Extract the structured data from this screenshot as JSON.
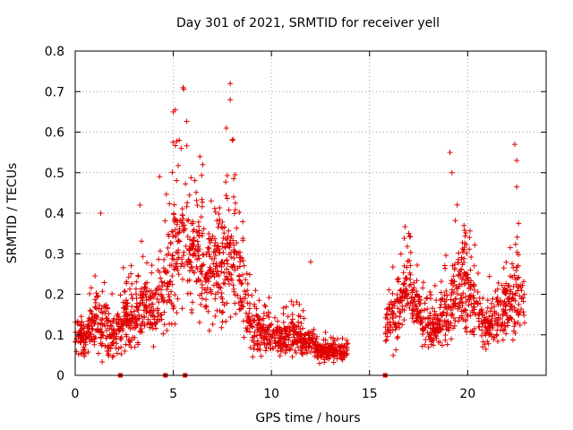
{
  "chart_data": {
    "type": "scatter",
    "title": "Day 301 of 2021, SRMTID for receiver yell",
    "xlabel": "GPS time / hours",
    "ylabel": "SRMTID / TECUs",
    "xlim": [
      0,
      24
    ],
    "ylim": [
      0,
      0.8
    ],
    "xticks": [
      0,
      5,
      10,
      15,
      20
    ],
    "xtick_labels": [
      "0",
      "5",
      "10",
      "15",
      "20"
    ],
    "yticks": [
      0,
      0.1,
      0.2,
      0.3,
      0.4,
      0.5,
      0.6,
      0.7,
      0.8
    ],
    "ytick_labels": [
      "0",
      "0.1",
      "0.2",
      "0.3",
      "0.4",
      "0.5",
      "0.6",
      "0.7",
      "0.8"
    ],
    "grid": true,
    "marker": "plus",
    "color": "#e00000",
    "legend": "none",
    "zero_markers": {
      "marker": "square",
      "x": [
        2.3,
        4.6,
        5.6,
        15.8
      ]
    },
    "data_gap": [
      13.9,
      15.8
    ],
    "envelope": {
      "x": [
        0.0,
        0.5,
        1.0,
        1.5,
        2.0,
        2.5,
        3.0,
        3.5,
        4.0,
        4.5,
        5.0,
        5.5,
        6.0,
        6.5,
        7.0,
        7.5,
        8.0,
        8.5,
        9.0,
        9.5,
        10.0,
        10.5,
        11.0,
        11.5,
        12.0,
        12.5,
        13.0,
        13.5,
        13.9,
        15.8,
        16.0,
        16.5,
        17.0,
        17.5,
        18.0,
        18.5,
        19.0,
        19.5,
        20.0,
        20.5,
        21.0,
        21.5,
        22.0,
        22.5,
        22.9
      ],
      "center": [
        0.11,
        0.09,
        0.14,
        0.11,
        0.09,
        0.14,
        0.15,
        0.16,
        0.17,
        0.2,
        0.3,
        0.36,
        0.31,
        0.26,
        0.25,
        0.28,
        0.3,
        0.22,
        0.12,
        0.1,
        0.1,
        0.09,
        0.1,
        0.09,
        0.08,
        0.06,
        0.06,
        0.06,
        0.06,
        0.11,
        0.14,
        0.18,
        0.22,
        0.14,
        0.12,
        0.12,
        0.16,
        0.22,
        0.21,
        0.16,
        0.12,
        0.14,
        0.18,
        0.2,
        0.18
      ],
      "spread": [
        0.04,
        0.04,
        0.07,
        0.09,
        0.04,
        0.06,
        0.07,
        0.08,
        0.08,
        0.1,
        0.14,
        0.16,
        0.13,
        0.12,
        0.12,
        0.14,
        0.13,
        0.09,
        0.05,
        0.04,
        0.04,
        0.03,
        0.04,
        0.04,
        0.03,
        0.02,
        0.02,
        0.02,
        0.02,
        0.05,
        0.06,
        0.08,
        0.08,
        0.05,
        0.04,
        0.05,
        0.08,
        0.09,
        0.09,
        0.07,
        0.05,
        0.06,
        0.08,
        0.09,
        0.06
      ]
    },
    "peaks": [
      {
        "x": 1.3,
        "y": 0.4
      },
      {
        "x": 3.3,
        "y": 0.42
      },
      {
        "x": 4.3,
        "y": 0.49
      },
      {
        "x": 5.0,
        "y": 0.65
      },
      {
        "x": 5.1,
        "y": 0.655
      },
      {
        "x": 5.5,
        "y": 0.71
      },
      {
        "x": 5.3,
        "y": 0.58
      },
      {
        "x": 5.4,
        "y": 0.56
      },
      {
        "x": 6.5,
        "y": 0.52
      },
      {
        "x": 7.7,
        "y": 0.61
      },
      {
        "x": 7.9,
        "y": 0.72
      },
      {
        "x": 7.9,
        "y": 0.68
      },
      {
        "x": 8.0,
        "y": 0.58
      },
      {
        "x": 12.0,
        "y": 0.28
      },
      {
        "x": 17.0,
        "y": 0.35
      },
      {
        "x": 19.1,
        "y": 0.55
      },
      {
        "x": 19.2,
        "y": 0.5
      },
      {
        "x": 22.4,
        "y": 0.57
      },
      {
        "x": 22.5,
        "y": 0.53
      },
      {
        "x": 22.5,
        "y": 0.465
      }
    ],
    "seed": 301
  }
}
